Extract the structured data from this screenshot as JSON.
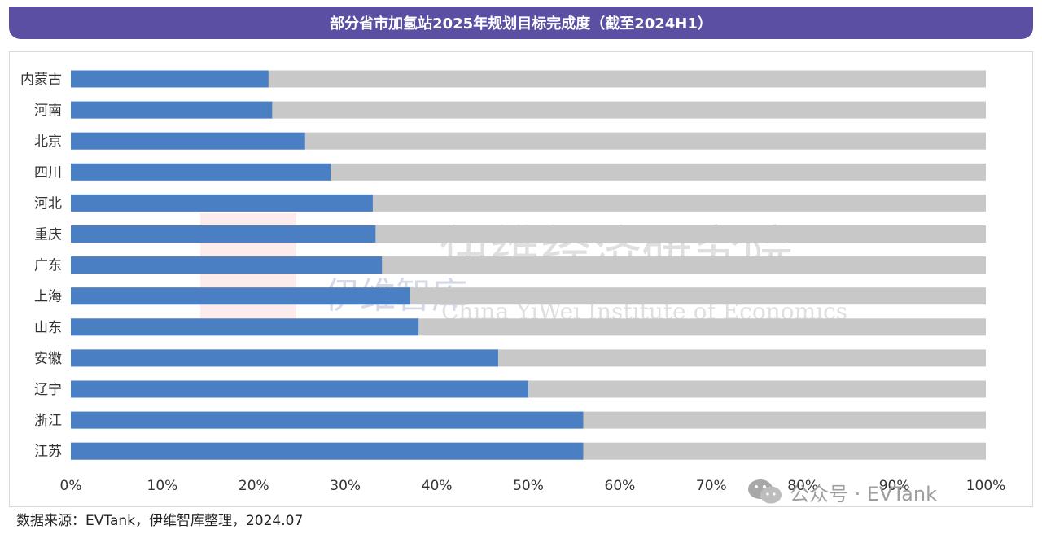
{
  "title": "部分省市加氢站2025年规划目标完成度（截至2024H1）",
  "source_note": "数据来源：EVTank，伊维智库整理，2024.07",
  "watermark": {
    "org_cn": "伊维经济研究院",
    "org_en": "China YiWei Institute of Economics",
    "brand": "伊维智库",
    "wechat": "公众号 · EVTank"
  },
  "colors": {
    "complete": "#4a7fc4",
    "remaining": "#c8c8c8",
    "title_bg": "#5a4fa3"
  },
  "chart_data": {
    "type": "bar",
    "orientation": "horizontal",
    "stacked": true,
    "categories": [
      "内蒙古",
      "河南",
      "北京",
      "四川",
      "河北",
      "重庆",
      "广东",
      "上海",
      "山东",
      "安徽",
      "辽宁",
      "浙江",
      "江苏"
    ],
    "values": [
      21.6,
      22.0,
      25.6,
      28.4,
      33.0,
      33.3,
      34.0,
      37.1,
      38.0,
      46.7,
      50.0,
      56.0,
      56.0
    ],
    "xlim": [
      0,
      100
    ],
    "xticks": [
      "0%",
      "10%",
      "20%",
      "30%",
      "40%",
      "50%",
      "60%",
      "70%",
      "80%",
      "90%",
      "100%"
    ],
    "grid": false,
    "legend": "none"
  }
}
